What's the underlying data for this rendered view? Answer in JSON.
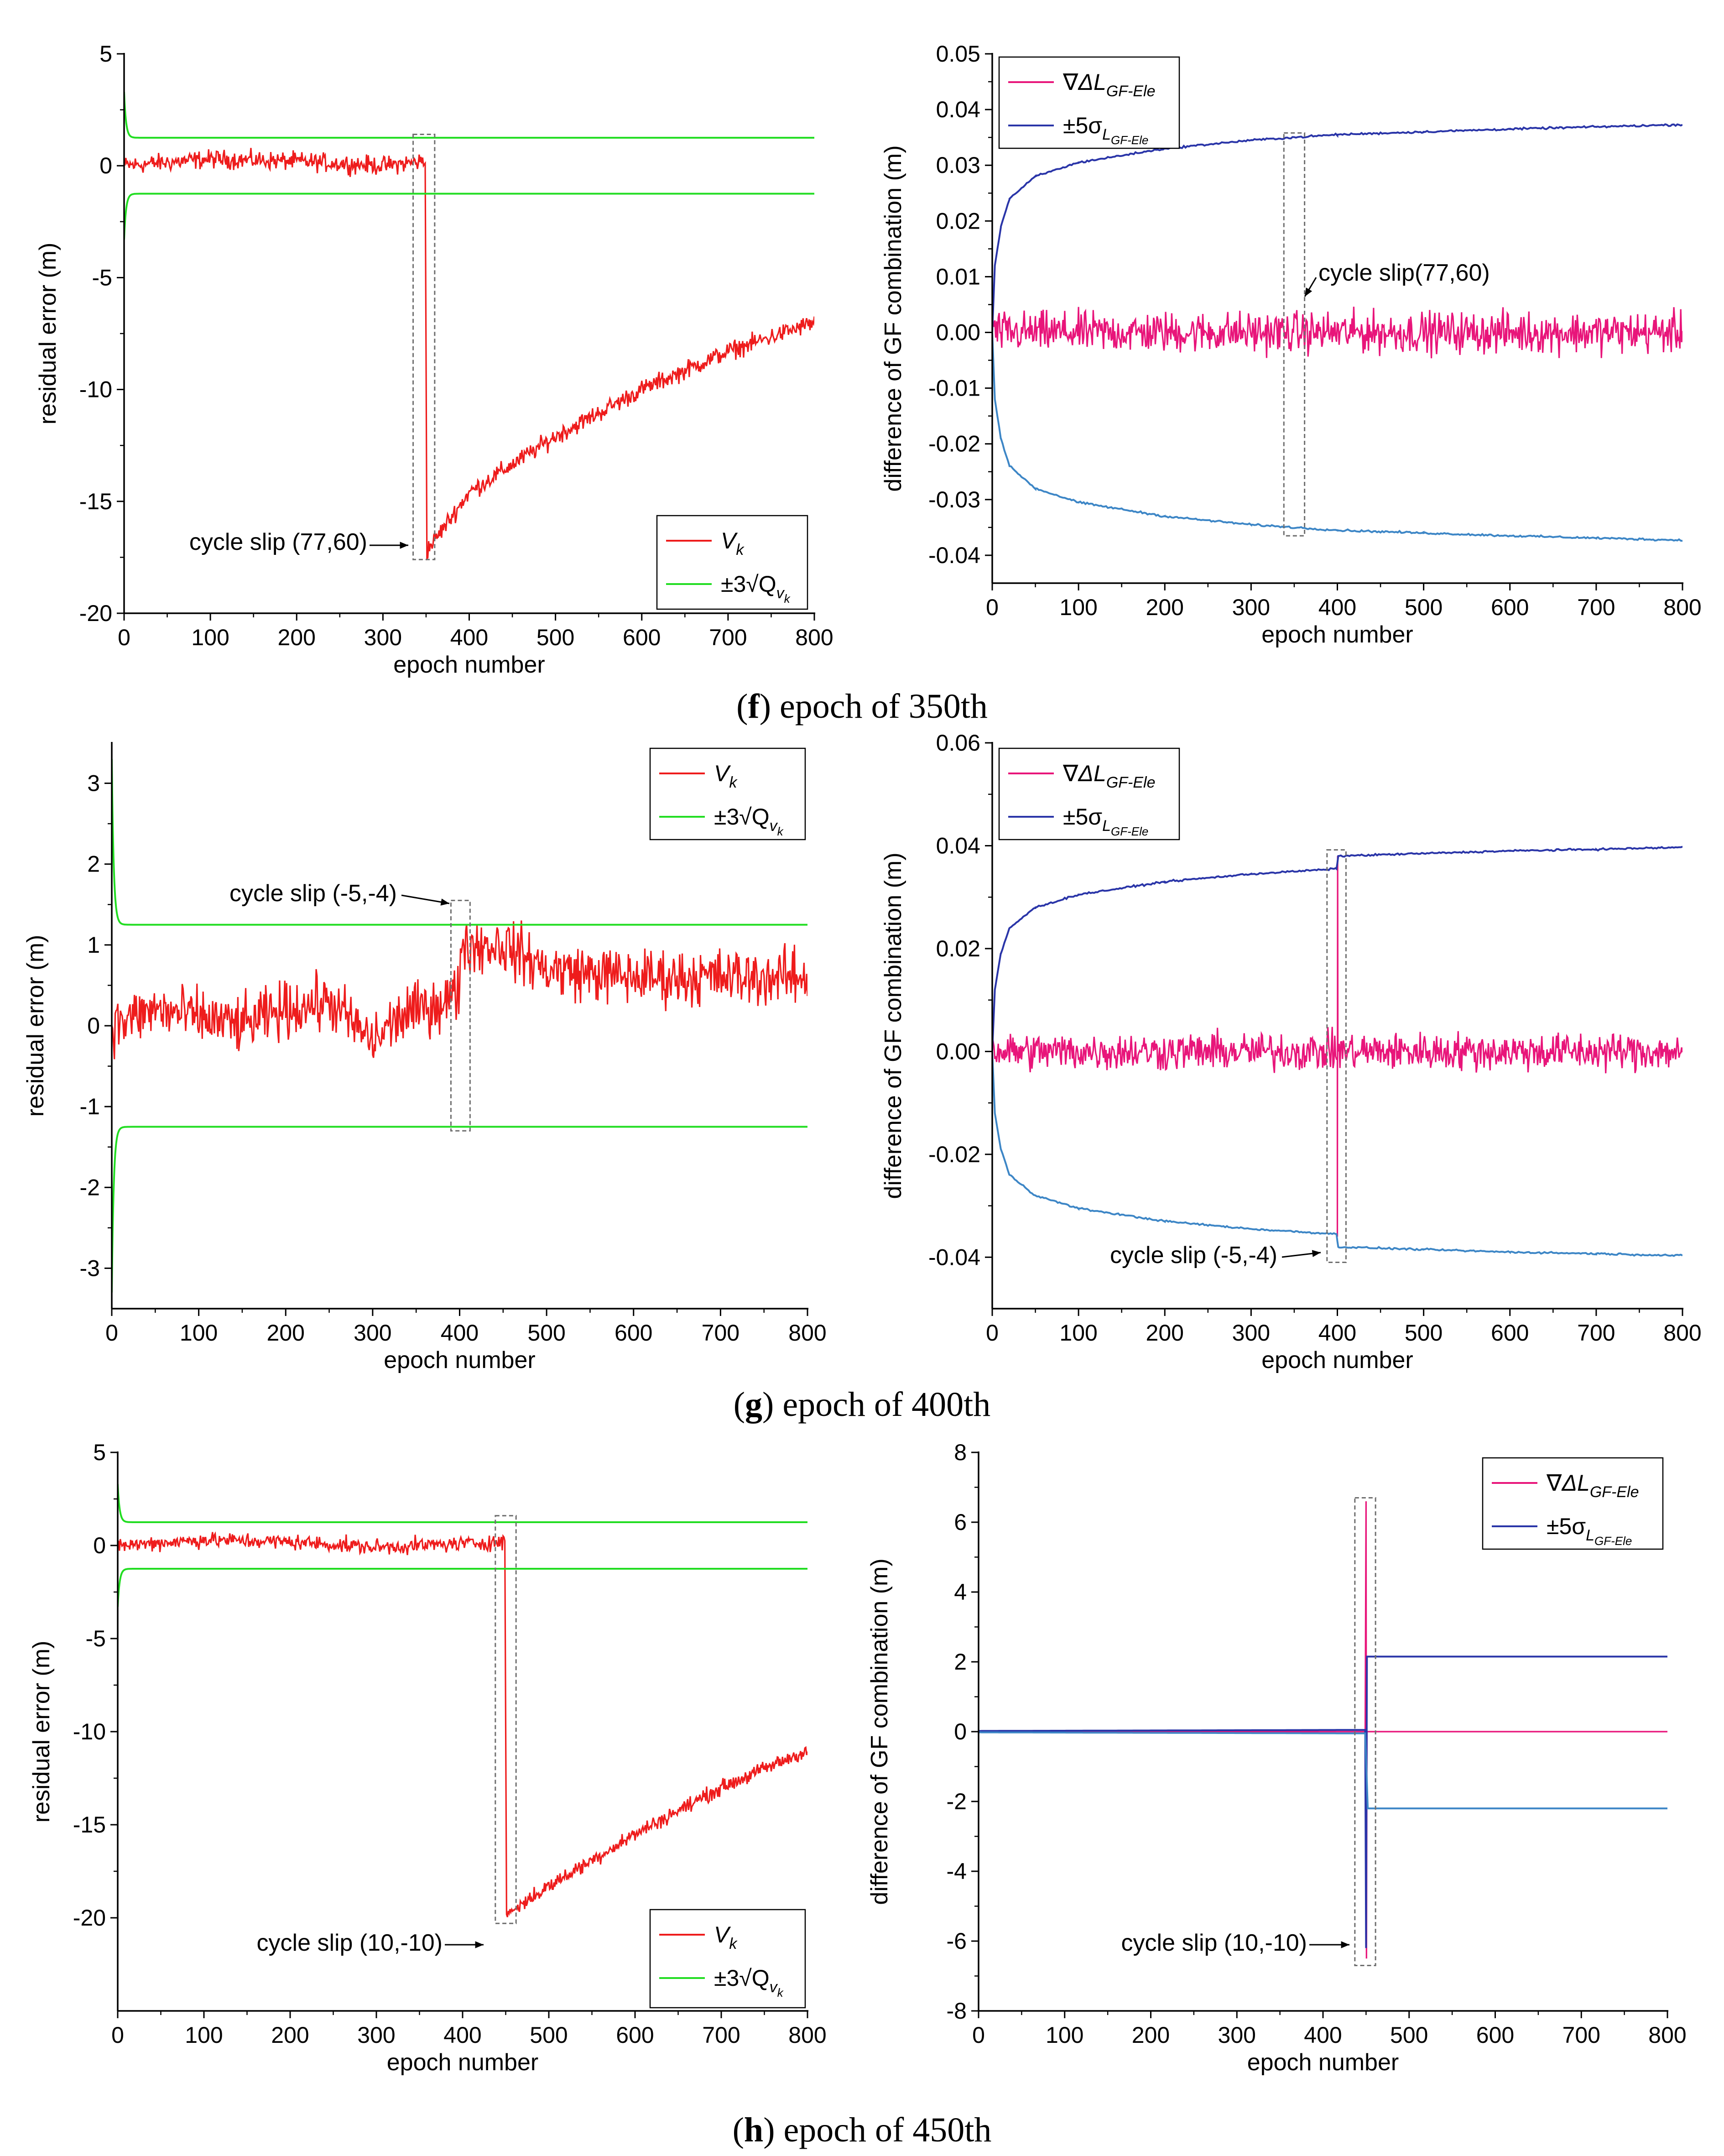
{
  "panels": [
    {
      "caption_letter": "f",
      "caption_text": "epoch of 350th"
    },
    {
      "caption_letter": "g",
      "caption_text": "epoch of 400th"
    },
    {
      "caption_letter": "h",
      "caption_text": "epoch of 450th"
    }
  ],
  "colors": {
    "residual": "#ee1c1c",
    "threshold": "#22dd22",
    "gf_difference": "#e8157a",
    "upper_bound": "#2a35a8",
    "lower_bound": "#3d86c6",
    "slip_box": "#6f6f6f"
  },
  "chart_data": [
    {
      "type": "line",
      "panel": "f",
      "side": "left",
      "xlabel": "epoch number",
      "ylabel": "residual error (m)",
      "xlim": [
        0,
        800
      ],
      "ylim": [
        -20,
        5
      ],
      "xticks": [
        0,
        100,
        200,
        300,
        400,
        500,
        600,
        700,
        800
      ],
      "yticks": [
        5,
        0,
        -5,
        -10,
        -15,
        -20
      ],
      "legend": {
        "position": "bottom-right",
        "entries": [
          {
            "text": "V",
            "sub": "k",
            "color": "#ee1c1c"
          },
          {
            "text": "±3√Q",
            "sub": "v",
            "subsub": "k",
            "color": "#22dd22"
          }
        ]
      },
      "annotation": "cycle slip (77,60)",
      "slip_box": {
        "x": [
          335,
          360
        ],
        "y": [
          -17.6,
          1.4
        ]
      },
      "series": [
        {
          "name": "V_k",
          "color": "#ee1c1c",
          "kind": "residual_slip",
          "points": [
            [
              0,
              0
            ],
            [
              100,
              0.3
            ],
            [
              200,
              0.2
            ],
            [
              300,
              0
            ],
            [
              349,
              0.2
            ],
            [
              351,
              -17.2
            ],
            [
              400,
              -14.6
            ],
            [
              500,
              -12.1
            ],
            [
              600,
              -10
            ],
            [
              700,
              -8.3
            ],
            [
              800,
              -7
            ]
          ],
          "noise": 0.35,
          "noise_start": 1
        },
        {
          "name": "+3√Q_vk",
          "color": "#22dd22",
          "kind": "threshold",
          "sign": 1,
          "asym": 1.25,
          "peak": 3.3
        },
        {
          "name": "-3√Q_vk",
          "color": "#22dd22",
          "kind": "threshold",
          "sign": -1,
          "asym": 1.25,
          "peak": 3.3
        }
      ]
    },
    {
      "type": "line",
      "panel": "f",
      "side": "right",
      "xlabel": "epoch number",
      "ylabel": "difference of GF combination (m)",
      "xlim": [
        0,
        800
      ],
      "ylim": [
        -0.045,
        0.05
      ],
      "xticks": [
        0,
        100,
        200,
        300,
        400,
        500,
        600,
        700,
        800
      ],
      "yticks": [
        0.05,
        0.04,
        0.03,
        0.02,
        0.01,
        0.0,
        -0.01,
        -0.02,
        -0.03,
        -0.04
      ],
      "ytick_labels": [
        "0.05",
        "0.04",
        "0.03",
        "0.02",
        "0.01",
        "0.00",
        "-0.01",
        "-0.02",
        "-0.03",
        "-0.04"
      ],
      "legend": {
        "position": "top-left",
        "entries": [
          {
            "text": "∇ΔL",
            "sub": "GF-Ele",
            "color": "#e8157a"
          },
          {
            "text": "±5σ",
            "sub": "L",
            "subsub": "GF-Ele",
            "color": "#2a35a8"
          }
        ]
      },
      "annotation": "cycle slip(77,60)",
      "slip_box": {
        "x": [
          338,
          362
        ],
        "y": [
          -0.0365,
          0.0358
        ]
      },
      "series": [
        {
          "name": "∇ΔL_GF-Ele",
          "color": "#e8157a",
          "kind": "noise",
          "amp": 0.0035
        },
        {
          "name": "+5σ",
          "color": "#2a35a8",
          "kind": "bound",
          "points": [
            [
              0,
              0
            ],
            [
              3,
              0.012
            ],
            [
              10,
              0.019
            ],
            [
              20,
              0.024
            ],
            [
              50,
              0.028
            ],
            [
              100,
              0.0305
            ],
            [
              200,
              0.033
            ],
            [
              300,
              0.0345
            ],
            [
              400,
              0.0355
            ],
            [
              500,
              0.036
            ],
            [
              600,
              0.0365
            ],
            [
              700,
              0.0369
            ],
            [
              800,
              0.0373
            ]
          ]
        },
        {
          "name": "-5σ",
          "color": "#3d86c6",
          "kind": "bound",
          "points": [
            [
              0,
              0
            ],
            [
              3,
              -0.012
            ],
            [
              10,
              -0.019
            ],
            [
              20,
              -0.024
            ],
            [
              50,
              -0.028
            ],
            [
              100,
              -0.0305
            ],
            [
              200,
              -0.033
            ],
            [
              300,
              -0.0345
            ],
            [
              400,
              -0.0355
            ],
            [
              500,
              -0.036
            ],
            [
              600,
              -0.0365
            ],
            [
              700,
              -0.0369
            ],
            [
              800,
              -0.0373
            ]
          ]
        }
      ]
    },
    {
      "type": "line",
      "panel": "g",
      "side": "left",
      "xlabel": "epoch number",
      "ylabel": "residual error (m)",
      "xlim": [
        0,
        800
      ],
      "ylim": [
        -3.5,
        3.5
      ],
      "xticks": [
        0,
        100,
        200,
        300,
        400,
        500,
        600,
        700,
        800
      ],
      "yticks": [
        3,
        2,
        1,
        0,
        -1,
        -2,
        -3
      ],
      "legend": {
        "position": "top-right",
        "entries": [
          {
            "text": "V",
            "sub": "k",
            "color": "#ee1c1c"
          },
          {
            "text": "±3√Q",
            "sub": "v",
            "subsub": "k",
            "color": "#22dd22"
          }
        ]
      },
      "annotation": "cycle slip (-5,-4)",
      "slip_box": {
        "x": [
          390,
          412
        ],
        "y": [
          -1.3,
          1.55
        ]
      },
      "series": [
        {
          "name": "V_k",
          "color": "#ee1c1c",
          "kind": "residual_slip",
          "points": [
            [
              0,
              0
            ],
            [
              50,
              0.2
            ],
            [
              100,
              0.1
            ],
            [
              150,
              0
            ],
            [
              200,
              0.2
            ],
            [
              250,
              0.3
            ],
            [
              300,
              -0.2
            ],
            [
              330,
              0.1
            ],
            [
              380,
              0.3
            ],
            [
              399,
              0.4
            ],
            [
              401,
              1.0
            ],
            [
              450,
              1.0
            ],
            [
              500,
              0.7
            ],
            [
              600,
              0.6
            ],
            [
              700,
              0.6
            ],
            [
              800,
              0.6
            ]
          ],
          "noise": 0.3,
          "noise_start": 0
        },
        {
          "name": "+3√Q_vk",
          "color": "#22dd22",
          "kind": "threshold",
          "sign": 1,
          "asym": 1.25,
          "peak": 3.3
        },
        {
          "name": "-3√Q_vk",
          "color": "#22dd22",
          "kind": "threshold",
          "sign": -1,
          "asym": 1.25,
          "peak": 3.3
        }
      ]
    },
    {
      "type": "line",
      "panel": "g",
      "side": "right",
      "xlabel": "epoch number",
      "ylabel": "difference of GF combination (m)",
      "xlim": [
        0,
        800
      ],
      "ylim": [
        -0.05,
        0.06
      ],
      "xticks": [
        0,
        100,
        200,
        300,
        400,
        500,
        600,
        700,
        800
      ],
      "yticks": [
        0.06,
        0.04,
        0.02,
        0.0,
        -0.02,
        -0.04
      ],
      "ytick_labels": [
        "0.06",
        "0.04",
        "0.02",
        "0.00",
        "-0.02",
        "-0.04"
      ],
      "legend": {
        "position": "top-left",
        "entries": [
          {
            "text": "∇ΔL",
            "sub": "GF-Ele",
            "color": "#e8157a"
          },
          {
            "text": "±5σ",
            "sub": "L",
            "subsub": "GF-Ele",
            "color": "#2a35a8"
          }
        ]
      },
      "annotation": "cycle slip (-5,-4)",
      "slip_box": {
        "x": [
          388,
          410
        ],
        "y": [
          -0.041,
          0.0392
        ]
      },
      "series": [
        {
          "name": "∇ΔL_GF-Ele",
          "color": "#e8157a",
          "kind": "noise_spike",
          "amp": 0.0035,
          "spike_x": 400,
          "spike_min": -0.036,
          "spike_max": 0.038
        },
        {
          "name": "+5σ",
          "color": "#2a35a8",
          "kind": "bound",
          "points": [
            [
              0,
              0
            ],
            [
              3,
              0.012
            ],
            [
              10,
              0.019
            ],
            [
              20,
              0.024
            ],
            [
              50,
              0.028
            ],
            [
              100,
              0.0305
            ],
            [
              200,
              0.033
            ],
            [
              300,
              0.0345
            ],
            [
              399,
              0.0355
            ],
            [
              401,
              0.038
            ],
            [
              500,
              0.0385
            ],
            [
              600,
              0.039
            ],
            [
              700,
              0.0393
            ],
            [
              800,
              0.0397
            ]
          ]
        },
        {
          "name": "-5σ",
          "color": "#3d86c6",
          "kind": "bound",
          "points": [
            [
              0,
              0
            ],
            [
              3,
              -0.012
            ],
            [
              10,
              -0.019
            ],
            [
              20,
              -0.024
            ],
            [
              50,
              -0.028
            ],
            [
              100,
              -0.0305
            ],
            [
              200,
              -0.033
            ],
            [
              300,
              -0.0345
            ],
            [
              399,
              -0.0355
            ],
            [
              401,
              -0.038
            ],
            [
              500,
              -0.0385
            ],
            [
              600,
              -0.039
            ],
            [
              700,
              -0.0393
            ],
            [
              800,
              -0.0397
            ]
          ]
        }
      ]
    },
    {
      "type": "line",
      "panel": "h",
      "side": "left",
      "xlabel": "epoch number",
      "ylabel": "residual error (m)",
      "xlim": [
        0,
        800
      ],
      "ylim": [
        -25,
        5
      ],
      "xticks": [
        0,
        100,
        200,
        300,
        400,
        500,
        600,
        700,
        800
      ],
      "yticks": [
        5,
        0,
        -5,
        -10,
        -15,
        -20
      ],
      "legend": {
        "position": "bottom-right",
        "entries": [
          {
            "text": "V",
            "sub": "k",
            "color": "#ee1c1c"
          },
          {
            "text": "±3√Q",
            "sub": "v",
            "subsub": "k",
            "color": "#22dd22"
          }
        ]
      },
      "annotation": "cycle slip (10,-10)",
      "slip_box": {
        "x": [
          438,
          462
        ],
        "y": [
          -20.3,
          1.6
        ]
      },
      "series": [
        {
          "name": "V_k",
          "color": "#ee1c1c",
          "kind": "residual_slip",
          "points": [
            [
              0,
              0
            ],
            [
              100,
              0.3
            ],
            [
              200,
              0.2
            ],
            [
              300,
              -0.1
            ],
            [
              449,
              0.2
            ],
            [
              451,
              -19.8
            ],
            [
              500,
              -18.3
            ],
            [
              600,
              -15.5
            ],
            [
              700,
              -13
            ],
            [
              800,
              -11
            ]
          ],
          "noise": 0.35,
          "noise_start": 1
        },
        {
          "name": "+3√Q_vk",
          "color": "#22dd22",
          "kind": "threshold",
          "sign": 1,
          "asym": 1.25,
          "peak": 3.3
        },
        {
          "name": "-3√Q_vk",
          "color": "#22dd22",
          "kind": "threshold",
          "sign": -1,
          "asym": 1.25,
          "peak": 3.3
        }
      ]
    },
    {
      "type": "line",
      "panel": "h",
      "side": "right",
      "xlabel": "epoch number",
      "ylabel": "difference of GF combination (m)",
      "xlim": [
        0,
        800
      ],
      "ylim": [
        -8,
        8
      ],
      "xticks": [
        0,
        100,
        200,
        300,
        400,
        500,
        600,
        700,
        800
      ],
      "yticks": [
        8,
        6,
        4,
        2,
        0,
        -2,
        -4,
        -6,
        -8
      ],
      "legend": {
        "position": "top-right",
        "entries": [
          {
            "text": "∇ΔL",
            "sub": "GF-Ele",
            "color": "#e8157a"
          },
          {
            "text": "±5σ",
            "sub": "L",
            "subsub": "GF-Ele",
            "color": "#2a35a8"
          }
        ]
      },
      "annotation": "cycle slip (10,-10)",
      "slip_box": {
        "x": [
          437,
          461
        ],
        "y": [
          -6.7,
          6.7
        ]
      },
      "series": [
        {
          "name": "∇ΔL_GF-Ele",
          "color": "#e8157a",
          "kind": "flat_spike",
          "spike_x": 450,
          "spike_min": -6.5,
          "spike_max": 6.6
        },
        {
          "name": "+5σ",
          "color": "#2a35a8",
          "kind": "bound",
          "points": [
            [
              0,
              0.02
            ],
            [
              449,
              0.05
            ],
            [
              450,
              -6.2
            ],
            [
              451,
              2.15
            ],
            [
              800,
              2.15
            ]
          ]
        },
        {
          "name": "-5σ",
          "color": "#3d86c6",
          "kind": "bound",
          "points": [
            [
              0,
              -0.02
            ],
            [
              449,
              -0.05
            ],
            [
              452,
              -2.2
            ],
            [
              800,
              -2.2
            ]
          ]
        }
      ]
    }
  ]
}
